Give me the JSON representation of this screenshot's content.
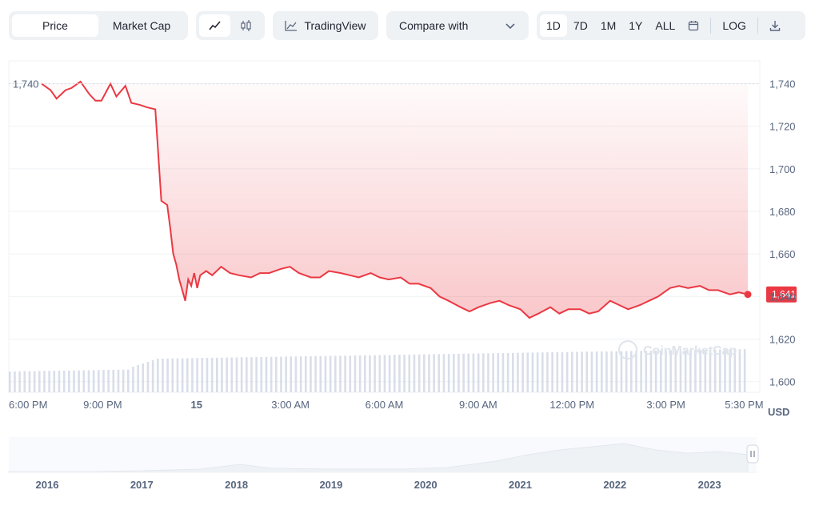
{
  "toolbar": {
    "price_label": "Price",
    "market_cap_label": "Market Cap",
    "line_icon": "line-chart-icon",
    "candle_icon": "candlestick-icon",
    "tradingview_label": "TradingView",
    "compare_label": "Compare with",
    "ranges": [
      "1D",
      "7D",
      "1M",
      "1Y",
      "ALL"
    ],
    "active_range": "1D",
    "log_label": "LOG",
    "calendar_icon": "calendar-icon",
    "download_icon": "download-icon"
  },
  "colors": {
    "line": "#ea3943",
    "line_up": "#16c784",
    "fill_top": "#ea3943",
    "volume": "#cfd6e4",
    "grid": "#eff2f5"
  },
  "chart_data": {
    "type": "line",
    "currency": "USD",
    "open_price_label": "1,740",
    "current_price_label": "1,641",
    "ylim": [
      1595,
      1750
    ],
    "y_ticks": [
      1600,
      1620,
      1640,
      1660,
      1680,
      1700,
      1720,
      1740
    ],
    "y_tick_labels": [
      "1,600",
      "1,620",
      "1,640",
      "1,660",
      "1,680",
      "1,700",
      "1,720",
      "1,740"
    ],
    "x_tick_labels": [
      "6:00 PM",
      "9:00 PM",
      "15",
      "3:00 AM",
      "6:00 AM",
      "9:00 AM",
      "12:00 PM",
      "3:00 PM",
      "5:30 PM"
    ],
    "x_hours": [
      0,
      3,
      6,
      9,
      12,
      15,
      18,
      21,
      23.5
    ],
    "x_range_hours": [
      0,
      24
    ],
    "series": [
      {
        "x": [
          0,
          0.3,
          0.5,
          0.8,
          1.0,
          1.3,
          1.6,
          1.8,
          2.0,
          2.3,
          2.5,
          2.8,
          3.0,
          3.3,
          3.5,
          3.8,
          4.0,
          4.2,
          4.3,
          4.4,
          4.5,
          4.6,
          4.7,
          4.8,
          4.9,
          5.0,
          5.1,
          5.2,
          5.3,
          5.5,
          5.7,
          6.0,
          6.3,
          6.6,
          7.0,
          7.3,
          7.6,
          8.0,
          8.3,
          8.6,
          9.0,
          9.3,
          9.6,
          10.0,
          10.3,
          10.6,
          11.0,
          11.3,
          11.6,
          12.0,
          12.3,
          12.6,
          13.0,
          13.3,
          13.6,
          14.0,
          14.3,
          14.6,
          15.0,
          15.3,
          15.6,
          16.0,
          16.3,
          16.6,
          17.0,
          17.3,
          17.6,
          18.0,
          18.3,
          18.6,
          19.0,
          19.3,
          19.6,
          20.0,
          20.3,
          20.6,
          21.0,
          21.3,
          21.6,
          22.0,
          22.3,
          22.6,
          23.0,
          23.3,
          23.6
        ],
        "y": [
          1740,
          1737,
          1733,
          1737,
          1738,
          1741,
          1735,
          1732,
          1732,
          1740,
          1734,
          1739,
          1731,
          1730,
          1729,
          1728,
          1685,
          1683,
          1672,
          1660,
          1655,
          1648,
          1643,
          1638,
          1648,
          1645,
          1651,
          1644,
          1650,
          1652,
          1650,
          1654,
          1651,
          1650,
          1649,
          1651,
          1651,
          1653,
          1654,
          1651,
          1649,
          1649,
          1652,
          1651,
          1650,
          1649,
          1651,
          1649,
          1648,
          1649,
          1646,
          1646,
          1644,
          1640,
          1638,
          1635,
          1633,
          1635,
          1637,
          1638,
          1636,
          1634,
          1630,
          1632,
          1635,
          1632,
          1634,
          1634,
          1632,
          1633,
          1638,
          1636,
          1634,
          1636,
          1638,
          1640,
          1644,
          1645,
          1644,
          1645,
          1643,
          1643,
          1641,
          1642,
          1641
        ]
      }
    ],
    "volume_note": "",
    "watermark": "CoinMarketCap",
    "navigator": {
      "years": [
        "2016",
        "2017",
        "2018",
        "2019",
        "2020",
        "2021",
        "2022",
        "2023"
      ]
    }
  }
}
